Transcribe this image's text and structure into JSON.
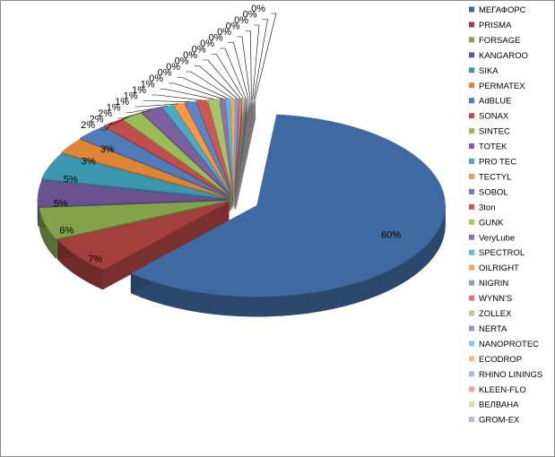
{
  "chart_data": {
    "type": "pie",
    "style": "3d-exploded",
    "legend_position": "right",
    "categories": [
      "МЕГАФОРС",
      "PRISMA",
      "FORSAGE",
      "KANGAROO",
      "SIKA",
      "PERMATEX",
      "AdBLUE",
      "SONAX",
      "SINTEC",
      "TOTEK",
      "PRO TEC",
      "TECTYL",
      "SOBOL",
      "3ton",
      "GUNK",
      "VeryLube",
      "SPECTROL",
      "OILRIGHT",
      "NIGRIN",
      "WYNN'S",
      "ZOLLEX",
      "NERTA",
      "NANOPROTEC",
      "ECODROP",
      "RHINO LININGS",
      "KLEEN-FLO",
      "ВЕЛВАНА",
      "GROM-EX"
    ],
    "values": [
      60,
      7,
      6,
      5,
      5,
      3,
      3,
      2,
      2,
      2,
      1,
      1,
      1,
      1,
      1,
      0.5,
      0.4,
      0.4,
      0.3,
      0.3,
      0.2,
      0.2,
      0.2,
      0.1,
      0.1,
      0.1,
      0.1,
      0.1
    ],
    "labels": [
      "60%",
      "7%",
      "6%",
      "5%",
      "5%",
      "3%",
      "3%",
      "2%",
      "2%",
      "2%",
      "1%",
      "1%",
      "1%",
      "1%",
      "1%",
      "0%",
      "0%",
      "0%",
      "0%",
      "0%",
      "0%",
      "0%",
      "0%",
      "0%",
      "0%",
      "0%",
      "0%",
      "0%"
    ],
    "colors": [
      "#3f6aa1",
      "#a3403d",
      "#83a24a",
      "#6a5290",
      "#3b97ae",
      "#dd8436",
      "#4f7bb6",
      "#c14e4b",
      "#9bbb59",
      "#7d60a0",
      "#4bacc6",
      "#f79646",
      "#5b88c4",
      "#cc5855",
      "#a8c46a",
      "#8c72ae",
      "#63b9d0",
      "#f8a560",
      "#7f9fcc",
      "#d67a78",
      "#b9cf8a",
      "#a08fc0",
      "#8acbdc",
      "#f9b985",
      "#a5bde0",
      "#e3a5a3",
      "#cfdfae",
      "#bfb3d6"
    ]
  }
}
